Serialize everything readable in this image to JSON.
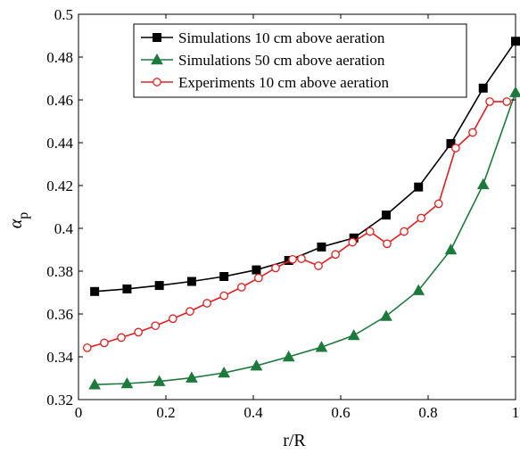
{
  "chart_data": {
    "type": "line",
    "xlabel": "r/R",
    "ylabel_main": "α",
    "ylabel_sub": "p",
    "xlim": [
      0,
      1
    ],
    "ylim": [
      0.32,
      0.5
    ],
    "xticks": [
      0,
      0.2,
      0.4,
      0.6,
      0.8,
      1
    ],
    "xtick_labels": [
      "0",
      "0.2",
      "0.4",
      "0.6",
      "0.8",
      "1"
    ],
    "yticks": [
      0.32,
      0.34,
      0.36,
      0.38,
      0.4,
      0.42,
      0.44,
      0.46,
      0.48,
      0.5
    ],
    "ytick_labels": [
      "0.32",
      "0.34",
      "0.36",
      "0.38",
      "0.4",
      "0.42",
      "0.44",
      "0.46",
      "0.48",
      "0.5"
    ],
    "grid": false,
    "legend_position": "top-right",
    "series": [
      {
        "name": "Simulations 10 cm above aeration",
        "color": "#000000",
        "marker": "square",
        "x": [
          0.037,
          0.111,
          0.185,
          0.259,
          0.333,
          0.407,
          0.481,
          0.556,
          0.63,
          0.704,
          0.778,
          0.852,
          0.926,
          1.0
        ],
        "y": [
          0.3705,
          0.3717,
          0.3733,
          0.3752,
          0.3775,
          0.3806,
          0.385,
          0.3913,
          0.3955,
          0.4062,
          0.4193,
          0.4396,
          0.4655,
          0.4874
        ]
      },
      {
        "name": "Simulations 50 cm above aeration",
        "color": "#1e7a3c",
        "marker": "triangle",
        "x": [
          0.037,
          0.111,
          0.185,
          0.259,
          0.333,
          0.407,
          0.481,
          0.556,
          0.63,
          0.704,
          0.778,
          0.852,
          0.926,
          1.0
        ],
        "y": [
          0.327,
          0.3275,
          0.3285,
          0.3302,
          0.3325,
          0.3358,
          0.34,
          0.3445,
          0.35,
          0.359,
          0.371,
          0.39,
          0.4205,
          0.4635
        ]
      },
      {
        "name": "Experiments 10 cm above aeration",
        "color": "#e02020",
        "marker": "circle",
        "x": [
          0.02,
          0.059,
          0.098,
          0.137,
          0.176,
          0.216,
          0.255,
          0.294,
          0.333,
          0.373,
          0.412,
          0.451,
          0.49,
          0.51,
          0.549,
          0.588,
          0.627,
          0.667,
          0.706,
          0.745,
          0.784,
          0.824,
          0.863,
          0.902,
          0.941,
          0.98
        ],
        "y": [
          0.3442,
          0.3465,
          0.349,
          0.3515,
          0.3545,
          0.3578,
          0.3612,
          0.365,
          0.3685,
          0.3725,
          0.3768,
          0.3815,
          0.3855,
          0.3858,
          0.3825,
          0.3878,
          0.3935,
          0.3985,
          0.3928,
          0.3985,
          0.4048,
          0.4115,
          0.4375,
          0.4448,
          0.4592,
          0.4592
        ]
      }
    ]
  }
}
